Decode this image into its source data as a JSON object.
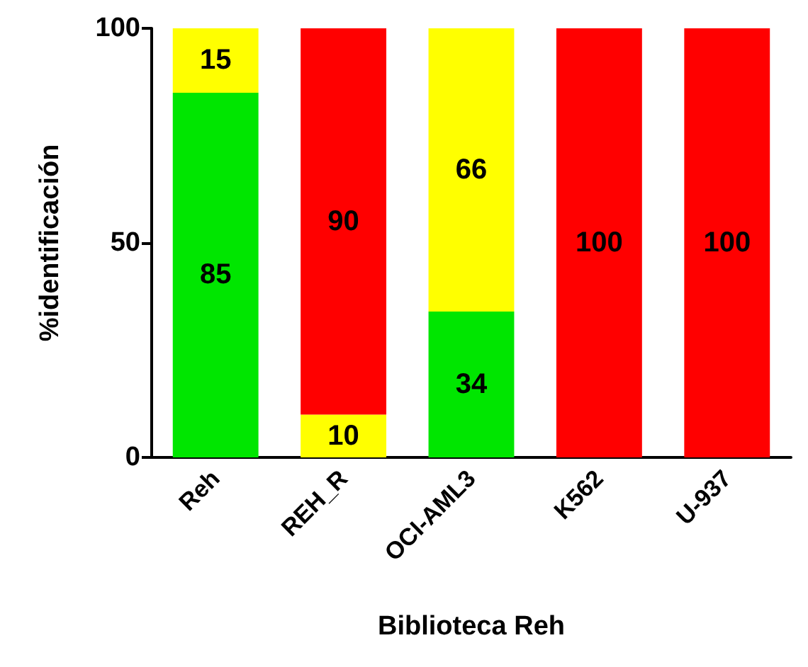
{
  "chart_data": {
    "type": "bar",
    "stacked": true,
    "data_labels": true,
    "xlabel": "Biblioteca Reh",
    "ylabel": "%identificación",
    "categories": [
      "Reh",
      "REH_R",
      "OCI-AML3",
      "K562",
      "U-937"
    ],
    "ylim": [
      0,
      100
    ],
    "yticks": [
      0,
      50,
      100
    ],
    "series": [
      {
        "color": "#00e600",
        "values": [
          85,
          null,
          34,
          null,
          null
        ]
      },
      {
        "color": "#ffff00",
        "values": [
          15,
          10,
          66,
          null,
          null
        ]
      },
      {
        "color": "#ff0000",
        "values": [
          null,
          90,
          null,
          100,
          100
        ]
      }
    ]
  }
}
